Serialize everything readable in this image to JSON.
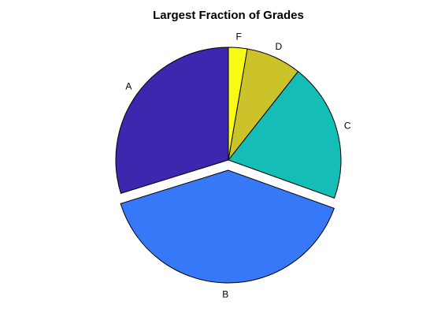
{
  "chart_data": {
    "type": "pie",
    "title": "Largest Fraction of Grades",
    "labels": [
      "A",
      "B",
      "C",
      "D",
      "F"
    ],
    "values": [
      30,
      40,
      20,
      8,
      2.7
    ],
    "colors": [
      "#3D27AE",
      "#3778F8",
      "#14BDB5",
      "#CCC22A",
      "#F9FB15"
    ],
    "exploded": [
      "B"
    ],
    "start_angle_deg": 90,
    "direction": "counterclockwise",
    "legend": "none"
  }
}
